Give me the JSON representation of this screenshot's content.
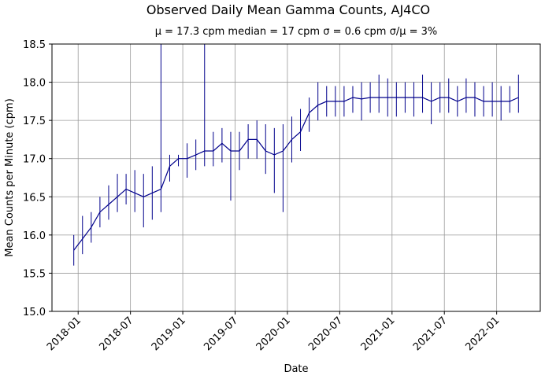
{
  "chart_data": {
    "type": "line",
    "title": "Observed Daily Mean Gamma Counts, AJ4CO",
    "subtitle": "μ = 17.3 cpm      median = 17 cpm      σ = 0.6 cpm      σ/μ = 3%",
    "x_label": "Date",
    "y_label": "Mean Counts per Minute (cpm)",
    "color": "#00008b",
    "grid": true,
    "xlim": [
      "2017-10",
      "2022-06"
    ],
    "xticks": [
      "2018-01",
      "2018-07",
      "2019-01",
      "2019-07",
      "2020-01",
      "2020-07",
      "2021-01",
      "2021-07",
      "2022-01"
    ],
    "ylim": [
      15,
      18.5
    ],
    "yticks": [
      {
        "value": 15,
        "label": "15.0"
      },
      {
        "value": 15.5,
        "label": "15.5"
      },
      {
        "value": 16,
        "label": "16.0"
      },
      {
        "value": 16.5,
        "label": "16.5"
      },
      {
        "value": 17,
        "label": "17.0"
      },
      {
        "value": 17.5,
        "label": "17.5"
      },
      {
        "value": 18,
        "label": "18.0"
      },
      {
        "value": 18.5,
        "label": "18.5"
      }
    ],
    "x": [
      "2017-12",
      "2018-01",
      "2018-02",
      "2018-03",
      "2018-04",
      "2018-05",
      "2018-06",
      "2018-07",
      "2018-08",
      "2018-09",
      "2018-10",
      "2018-11",
      "2018-12",
      "2019-01",
      "2019-02",
      "2019-03",
      "2019-04",
      "2019-05",
      "2019-06",
      "2019-07",
      "2019-08",
      "2019-09",
      "2019-10",
      "2019-11",
      "2019-12",
      "2020-01",
      "2020-02",
      "2020-03",
      "2020-04",
      "2020-05",
      "2020-06",
      "2020-07",
      "2020-08",
      "2020-09",
      "2020-10",
      "2020-11",
      "2020-12",
      "2021-01",
      "2021-02",
      "2021-03",
      "2021-04",
      "2021-05",
      "2021-06",
      "2021-07",
      "2021-08",
      "2021-09",
      "2021-10",
      "2021-11",
      "2021-12",
      "2022-01",
      "2022-02",
      "2022-03"
    ],
    "values": [
      15.8,
      15.95,
      16.1,
      16.3,
      16.4,
      16.5,
      16.6,
      16.55,
      16.5,
      16.55,
      16.6,
      16.9,
      17.0,
      17.0,
      17.05,
      17.1,
      17.1,
      17.2,
      17.1,
      17.1,
      17.25,
      17.25,
      17.1,
      17.05,
      17.1,
      17.25,
      17.35,
      17.6,
      17.7,
      17.75,
      17.75,
      17.75,
      17.8,
      17.78,
      17.8,
      17.8,
      17.8,
      17.8,
      17.8,
      17.8,
      17.8,
      17.75,
      17.8,
      17.8,
      17.75,
      17.8,
      17.8,
      17.75,
      17.75,
      17.75,
      17.75,
      17.8
    ],
    "low": [
      15.6,
      15.75,
      15.9,
      16.1,
      16.2,
      16.3,
      16.4,
      16.3,
      16.1,
      16.2,
      16.3,
      16.7,
      16.9,
      16.75,
      16.85,
      16.9,
      16.9,
      16.95,
      16.45,
      16.85,
      17.0,
      17.0,
      16.8,
      16.55,
      16.3,
      16.95,
      17.1,
      17.35,
      17.5,
      17.55,
      17.55,
      17.55,
      17.6,
      17.5,
      17.6,
      17.6,
      17.55,
      17.55,
      17.6,
      17.55,
      17.6,
      17.45,
      17.6,
      17.6,
      17.55,
      17.6,
      17.55,
      17.55,
      17.55,
      17.5,
      17.6,
      17.6
    ],
    "high": [
      16.0,
      16.25,
      16.3,
      16.5,
      16.65,
      16.8,
      16.8,
      16.85,
      16.8,
      16.9,
      18.5,
      17.05,
      17.05,
      17.2,
      17.25,
      18.5,
      17.35,
      17.4,
      17.35,
      17.35,
      17.45,
      17.5,
      17.45,
      17.4,
      17.45,
      17.55,
      17.65,
      17.8,
      18.0,
      17.95,
      17.95,
      17.95,
      17.95,
      18.0,
      18.0,
      18.1,
      18.05,
      18.0,
      18.0,
      18.0,
      18.1,
      18.0,
      18.0,
      18.05,
      17.95,
      18.05,
      18.0,
      17.95,
      18.0,
      17.95,
      17.95,
      18.1
    ]
  }
}
